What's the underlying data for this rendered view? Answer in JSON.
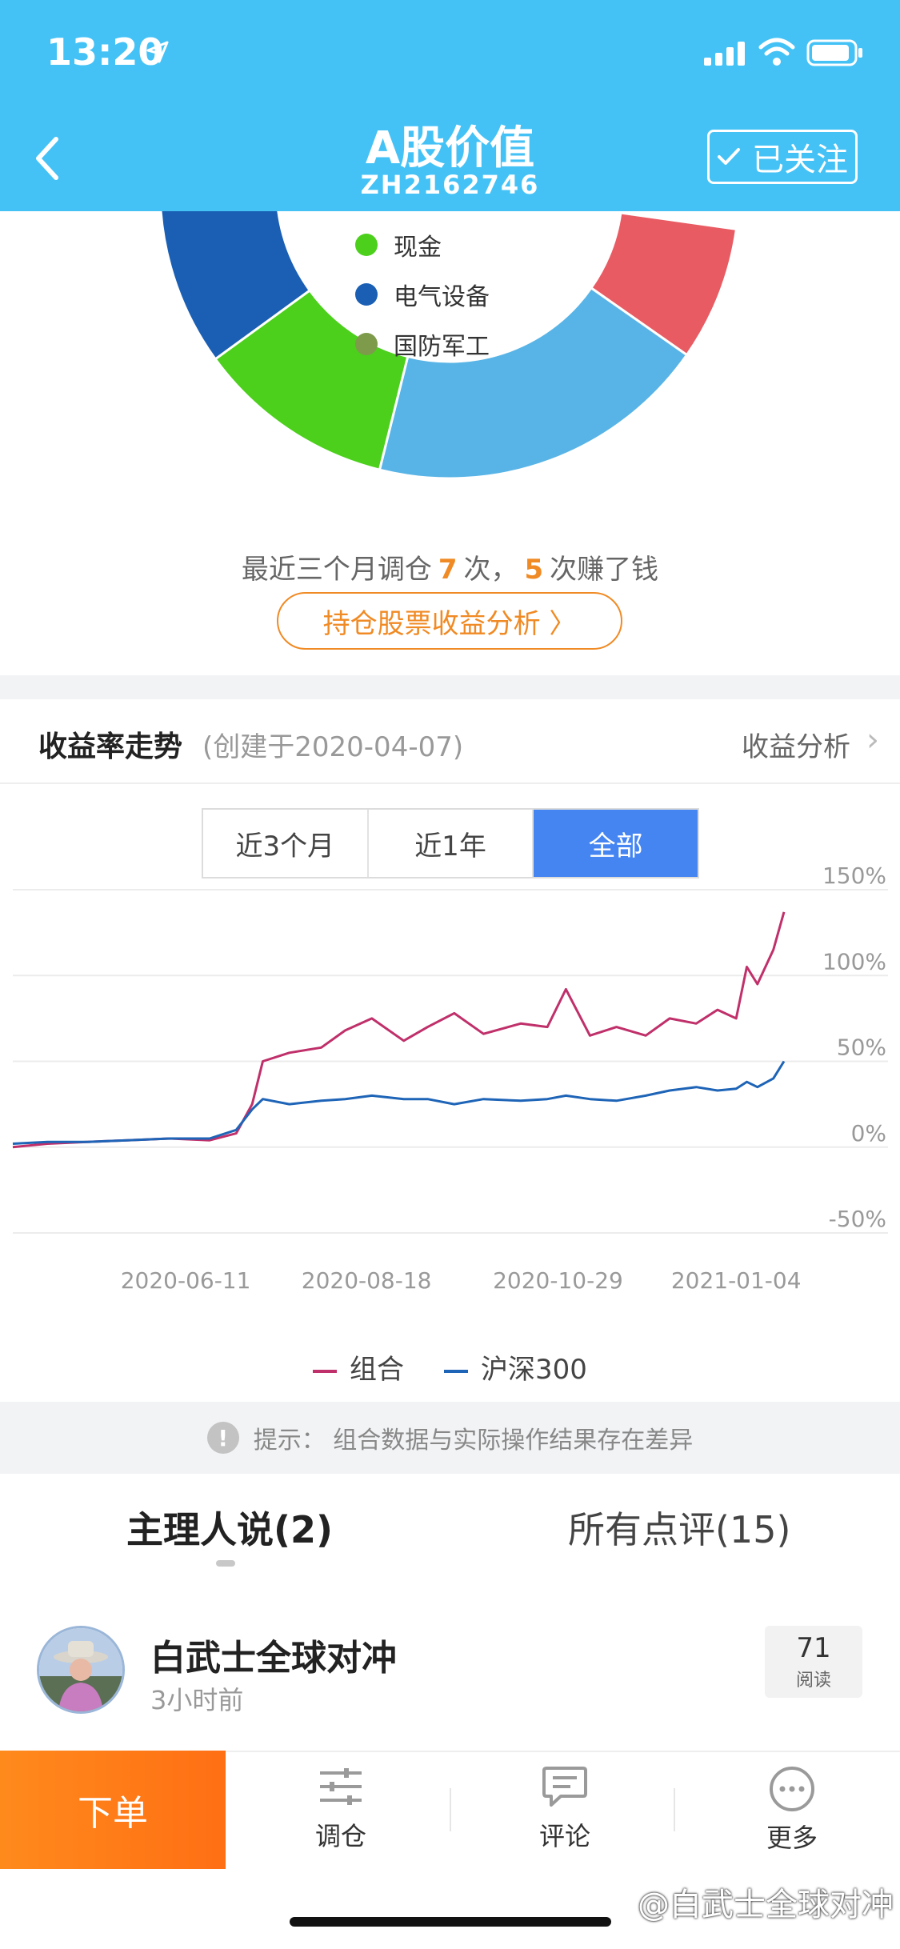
{
  "status_bar": {
    "time": "13:20"
  },
  "header": {
    "title": "A股价值",
    "code": "ZH2162746",
    "follow_label": "已关注",
    "colors": {
      "background": "#44c2f6"
    }
  },
  "allocation": {
    "legend": [
      {
        "label": "现金",
        "color": "#4cd01c"
      },
      {
        "label": "电气设备",
        "color": "#1a5fb4"
      },
      {
        "label": "国防军工",
        "color": "#7d9b4b"
      }
    ],
    "segment_colors": [
      "#e85b63",
      "#58b4e6",
      "#4cd01c",
      "#1a5fb4"
    ],
    "rebalance": {
      "prefix": "最近三个月调仓",
      "count": "7",
      "mid": "次，",
      "profit_count": "5",
      "suffix": "次赚了钱"
    },
    "analysis_button": "持仓股票收益分析 〉"
  },
  "performance": {
    "title": "收益率走势",
    "created": "(创建于2020-04-07)",
    "analysis_link": "收益分析",
    "ranges": [
      {
        "label": "近3个月",
        "active": false
      },
      {
        "label": "近1年",
        "active": false
      },
      {
        "label": "全部",
        "active": true
      }
    ]
  },
  "chart_data": {
    "type": "line",
    "y_ticks": [
      "150%",
      "100%",
      "50%",
      "0%",
      "-50%"
    ],
    "ylim": [
      -50,
      150
    ],
    "x_ticks": [
      "2020-06-11",
      "2020-08-18",
      "2020-10-29",
      "2021-01-04"
    ],
    "xlim": [
      "2020-04-07",
      "2021-01-25"
    ],
    "grid": true,
    "legend_position": "bottom",
    "series": [
      {
        "name": "组合",
        "color": "#c0306a",
        "x": [
          "2020-04-07",
          "2020-04-20",
          "2020-05-05",
          "2020-05-20",
          "2020-06-05",
          "2020-06-20",
          "2020-06-30",
          "2020-07-06",
          "2020-07-10",
          "2020-07-20",
          "2020-08-01",
          "2020-08-10",
          "2020-08-20",
          "2020-09-01",
          "2020-09-10",
          "2020-09-20",
          "2020-10-01",
          "2020-10-15",
          "2020-10-25",
          "2020-11-01",
          "2020-11-10",
          "2020-11-20",
          "2020-12-01",
          "2020-12-10",
          "2020-12-20",
          "2020-12-28",
          "2021-01-04",
          "2021-01-08",
          "2021-01-12",
          "2021-01-18",
          "2021-01-22"
        ],
        "values": [
          0,
          2,
          3,
          4,
          5,
          4,
          8,
          25,
          50,
          55,
          58,
          68,
          75,
          62,
          70,
          78,
          66,
          72,
          70,
          92,
          65,
          70,
          65,
          75,
          72,
          80,
          75,
          105,
          95,
          115,
          137
        ]
      },
      {
        "name": "沪深300",
        "color": "#1e64b7",
        "x": [
          "2020-04-07",
          "2020-04-20",
          "2020-05-05",
          "2020-05-20",
          "2020-06-05",
          "2020-06-20",
          "2020-06-30",
          "2020-07-06",
          "2020-07-10",
          "2020-07-20",
          "2020-08-01",
          "2020-08-10",
          "2020-08-20",
          "2020-09-01",
          "2020-09-10",
          "2020-09-20",
          "2020-10-01",
          "2020-10-15",
          "2020-10-25",
          "2020-11-01",
          "2020-11-10",
          "2020-11-20",
          "2020-12-01",
          "2020-12-10",
          "2020-12-20",
          "2020-12-28",
          "2021-01-04",
          "2021-01-08",
          "2021-01-12",
          "2021-01-18",
          "2021-01-22"
        ],
        "values": [
          2,
          3,
          3,
          4,
          5,
          5,
          10,
          22,
          28,
          25,
          27,
          28,
          30,
          28,
          28,
          25,
          28,
          27,
          28,
          30,
          28,
          27,
          30,
          33,
          35,
          33,
          34,
          38,
          35,
          40,
          50
        ]
      }
    ]
  },
  "chart_legend": [
    {
      "label": "组合",
      "color": "#c0306a"
    },
    {
      "label": "沪深300",
      "color": "#1e64b7"
    }
  ],
  "tip": {
    "icon": "!",
    "text": "提示：  组合数据与实际操作结果存在差异"
  },
  "tabs": {
    "manager": "主理人说(2)",
    "reviews": "所有点评(15)"
  },
  "post": {
    "author": "白武士全球对冲",
    "time": "3小时前",
    "reads": "71",
    "reads_label": "阅读"
  },
  "bottom_bar": {
    "order": "下单",
    "rebalance": "调仓",
    "comment": "评论",
    "more": "更多"
  },
  "watermark": "@白武士全球对冲"
}
